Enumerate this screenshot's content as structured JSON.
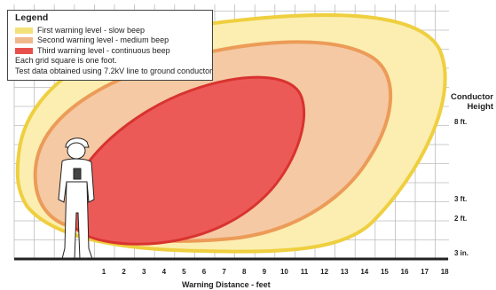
{
  "legend": {
    "title": "Legend",
    "items": [
      {
        "label": "First warning level - slow beep",
        "color": "#f3e17a"
      },
      {
        "label": "Second warning level - medium beep",
        "color": "#f0b98c"
      },
      {
        "label": "Third warning level - continuous beep",
        "color": "#e8504e"
      }
    ],
    "notes": [
      "Each grid square is one foot.",
      "Test data obtained using 7.2kV line to ground conductor"
    ]
  },
  "height_axis": {
    "title_line1": "Conductor",
    "title_line2": "Height",
    "labels": [
      "8 ft.",
      "3 ft.",
      "2 ft.",
      "3 in."
    ]
  },
  "distance_axis": {
    "title": "Warning Distance - feet",
    "ticks": [
      "1",
      "2",
      "3",
      "4",
      "5",
      "6",
      "7",
      "8",
      "9",
      "10",
      "11",
      "12",
      "13",
      "14",
      "15",
      "16",
      "17",
      "18"
    ]
  },
  "colors": {
    "first_fill": "#fbeeb0",
    "first_stroke": "#efcf3f",
    "second_fill": "#f5c9a3",
    "second_stroke": "#ec9b58",
    "third_fill": "#ec5a58",
    "third_stroke": "#d8332f",
    "grid": "#bdbdbd",
    "ground": "#222222"
  }
}
